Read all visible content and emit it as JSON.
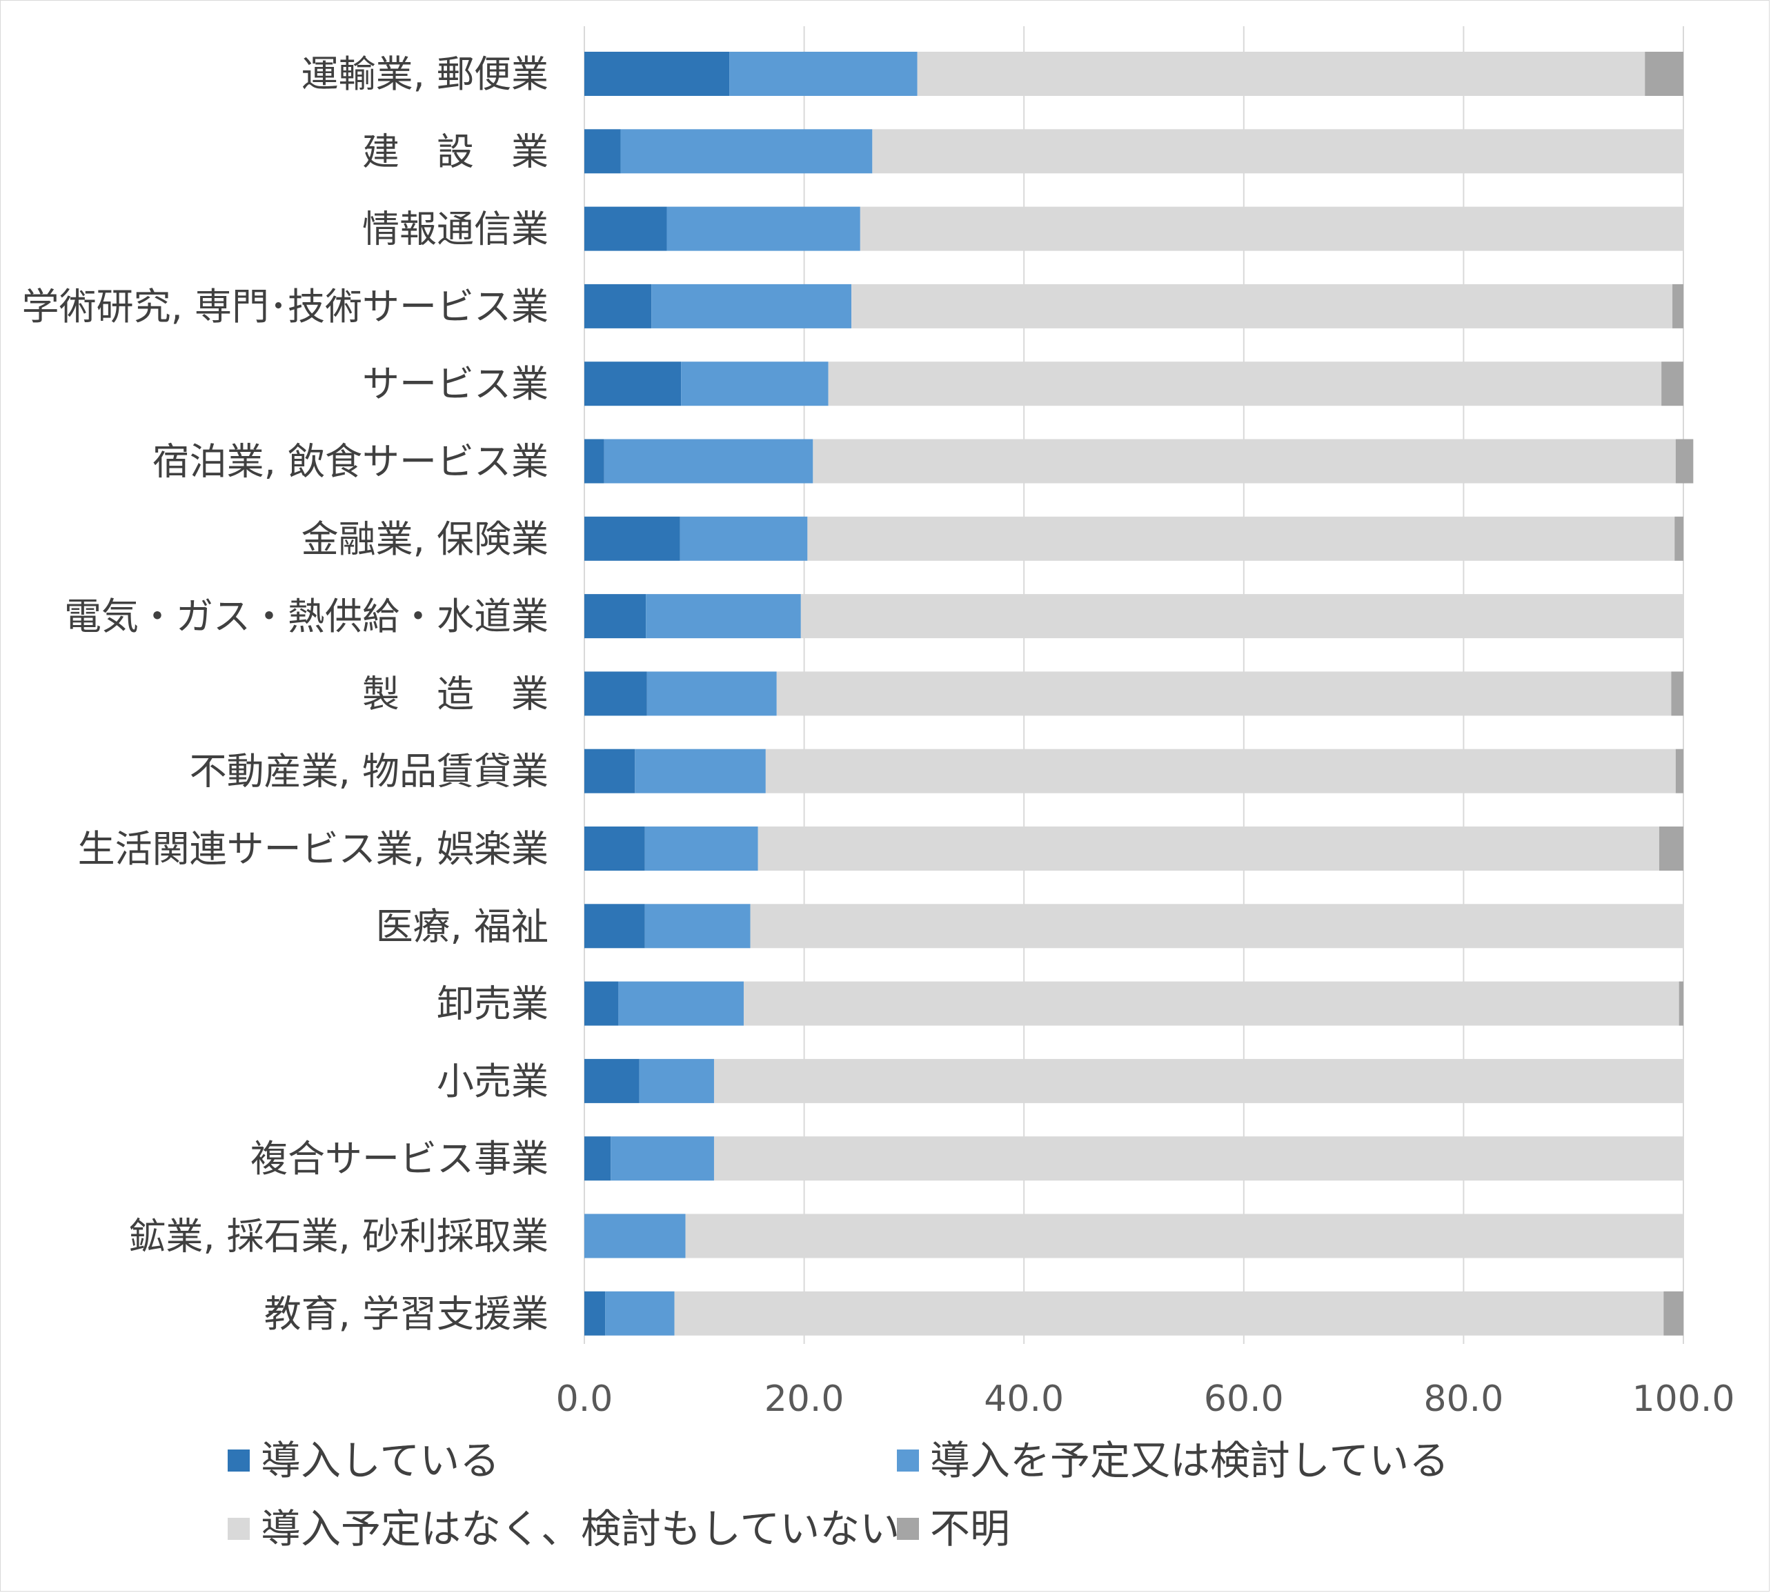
{
  "chart_data": {
    "type": "bar",
    "orientation": "horizontal",
    "stacked": true,
    "title": "",
    "xlabel": "",
    "ylabel": "",
    "xlim": [
      0,
      100
    ],
    "xticks": [
      "0.0",
      "20.0",
      "40.0",
      "60.0",
      "80.0",
      "100.0"
    ],
    "grid": "vertical",
    "legend_position": "bottom",
    "categories": [
      "運輸業, 郵便業",
      "建　設　業",
      "情報通信業",
      "学術研究, 専門･技術サービス業",
      "サービス業",
      "宿泊業, 飲食サービス業",
      "金融業, 保険業",
      "電気・ガス・熱供給・水道業",
      "製　造　業",
      "不動産業, 物品賃貸業",
      "生活関連サービス業, 娯楽業",
      "医療, 福祉",
      "卸売業",
      "小売業",
      "複合サービス事業",
      "鉱業, 採石業, 砂利採取業",
      "教育, 学習支援業"
    ],
    "series": [
      {
        "name": "導入している",
        "color": "#2e75b6",
        "values": [
          13.2,
          3.3,
          7.5,
          6.1,
          8.8,
          1.8,
          8.7,
          5.6,
          5.7,
          4.6,
          5.5,
          5.5,
          3.1,
          5.0,
          2.4,
          0.0,
          1.9
        ]
      },
      {
        "name": "導入を予定又は検討している",
        "color": "#5b9bd5",
        "values": [
          17.1,
          22.9,
          17.6,
          18.2,
          13.4,
          19.0,
          11.6,
          14.1,
          11.8,
          11.9,
          10.3,
          9.6,
          11.4,
          6.8,
          9.4,
          9.2,
          6.3
        ]
      },
      {
        "name": "導入予定はなく、検討もしていない",
        "color": "#d9d9d9",
        "values": [
          66.2,
          73.8,
          74.9,
          74.7,
          75.8,
          78.5,
          78.9,
          80.3,
          81.4,
          82.8,
          82.0,
          84.9,
          85.1,
          88.2,
          88.2,
          90.8,
          90.0
        ]
      },
      {
        "name": "不明",
        "color": "#a5a5a5",
        "values": [
          3.5,
          0.0,
          0.0,
          1.0,
          2.0,
          1.6,
          0.8,
          0.0,
          1.1,
          0.7,
          2.2,
          0.0,
          0.4,
          0.0,
          0.0,
          0.0,
          1.8
        ]
      }
    ]
  }
}
